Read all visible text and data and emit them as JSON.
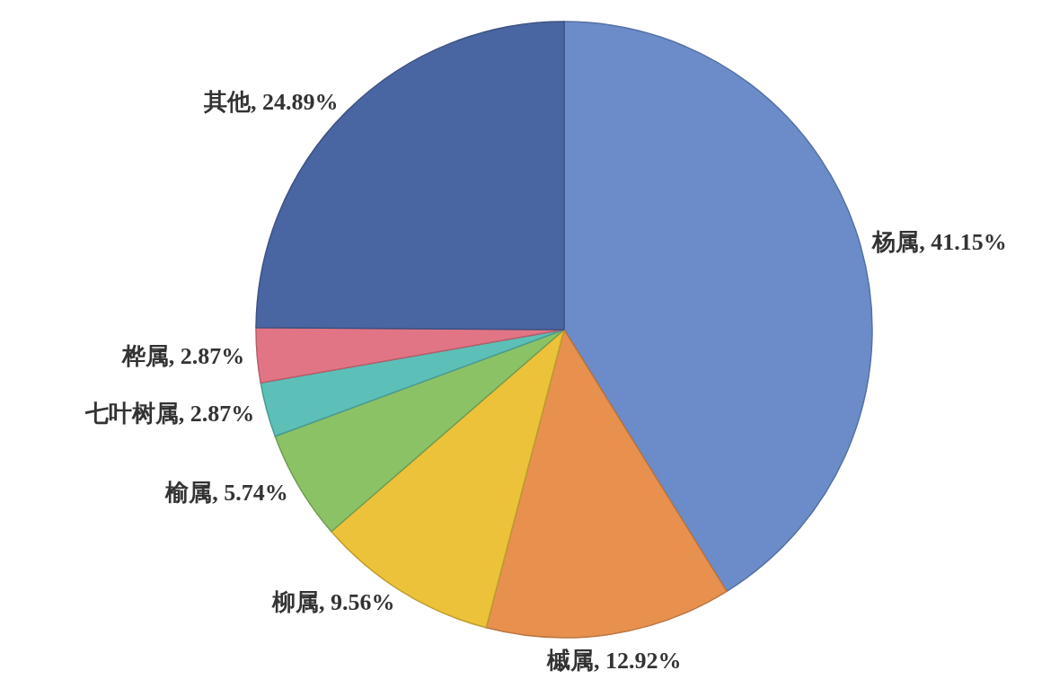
{
  "chart_data": {
    "type": "pie",
    "categories": [
      "杨属",
      "槭属",
      "柳属",
      "榆属",
      "七叶树属",
      "桦属",
      "其他"
    ],
    "values": [
      41.15,
      12.92,
      9.56,
      5.74,
      2.87,
      2.87,
      24.89
    ],
    "value_labels": [
      "41.15%",
      "12.92%",
      "9.56%",
      "5.74%",
      "2.87%",
      "2.87%",
      "24.89%"
    ],
    "colors": [
      "#6b8cc9",
      "#e8914f",
      "#ecc23a",
      "#8cc266",
      "#5cc0b8",
      "#e27585",
      "#4a66a2"
    ]
  }
}
